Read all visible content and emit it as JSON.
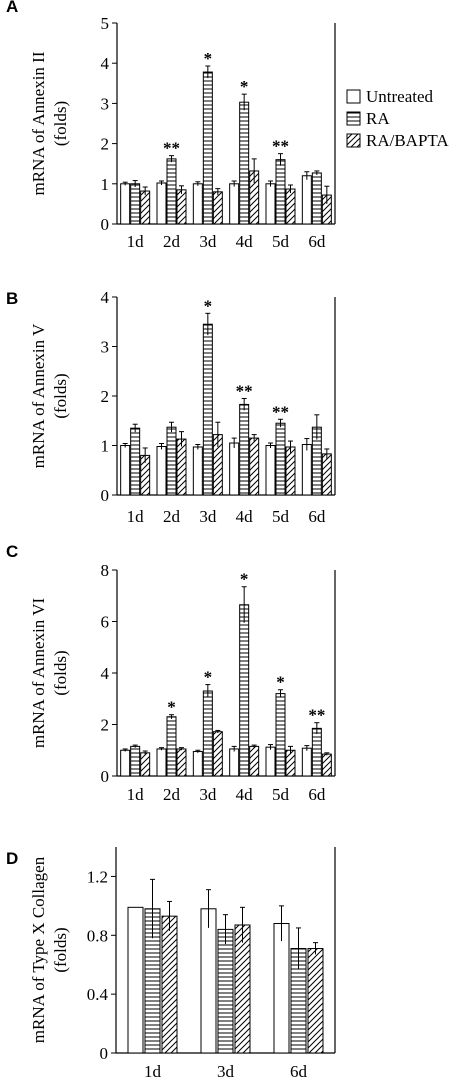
{
  "legend": {
    "entries": [
      {
        "label": "Untreated",
        "pattern": "open"
      },
      {
        "label": "RA",
        "pattern": "horizontal-lines"
      },
      {
        "label": "RA/BAPTA",
        "pattern": "diagonal-lines"
      }
    ]
  },
  "chart_data": [
    {
      "panel": "A",
      "type": "bar",
      "ylabel": [
        "mRNA of Annexin II",
        "(folds)"
      ],
      "ylim": [
        0,
        5
      ],
      "yticks": [
        0,
        1,
        2,
        3,
        4,
        5
      ],
      "categories": [
        "1d",
        "2d",
        "3d",
        "4d",
        "5d",
        "6d"
      ],
      "series": [
        {
          "name": "Untreated",
          "values": [
            1.0,
            1.02,
            1.0,
            1.0,
            1.0,
            1.2
          ],
          "errors": [
            0.04,
            0.05,
            0.05,
            0.07,
            0.07,
            0.1
          ]
        },
        {
          "name": "RA",
          "values": [
            1.0,
            1.62,
            3.78,
            3.03,
            1.6,
            1.27
          ],
          "errors": [
            0.08,
            0.08,
            0.15,
            0.2,
            0.15,
            0.05
          ]
        },
        {
          "name": "RA/BAPTA",
          "values": [
            0.82,
            0.85,
            0.8,
            1.32,
            0.87,
            0.72
          ],
          "errors": [
            0.1,
            0.1,
            0.08,
            0.3,
            0.1,
            0.22
          ]
        }
      ],
      "significance": [
        "",
        "**",
        "*",
        "*",
        "**",
        ""
      ]
    },
    {
      "panel": "B",
      "type": "bar",
      "ylabel": [
        "mRNA of Annexin V",
        "(folds)"
      ],
      "ylim": [
        0,
        4
      ],
      "yticks": [
        0,
        1,
        2,
        3,
        4
      ],
      "categories": [
        "1d",
        "2d",
        "3d",
        "4d",
        "5d",
        "6d"
      ],
      "series": [
        {
          "name": "Untreated",
          "values": [
            1.0,
            0.98,
            0.97,
            1.05,
            1.0,
            1.02
          ],
          "errors": [
            0.04,
            0.06,
            0.05,
            0.1,
            0.05,
            0.12
          ]
        },
        {
          "name": "RA",
          "values": [
            1.35,
            1.37,
            3.45,
            1.83,
            1.45,
            1.37
          ],
          "errors": [
            0.08,
            0.1,
            0.22,
            0.12,
            0.08,
            0.25
          ]
        },
        {
          "name": "RA/BAPTA",
          "values": [
            0.8,
            1.13,
            1.22,
            1.15,
            0.97,
            0.83
          ],
          "errors": [
            0.15,
            0.15,
            0.25,
            0.07,
            0.12,
            0.1
          ]
        }
      ],
      "significance": [
        "",
        "",
        "*",
        "**",
        "**",
        ""
      ]
    },
    {
      "panel": "C",
      "type": "bar",
      "ylabel": [
        "mRNA of Annexin VI",
        "(folds)"
      ],
      "ylim": [
        0,
        8
      ],
      "yticks": [
        0,
        2,
        4,
        6,
        8
      ],
      "categories": [
        "1d",
        "2d",
        "3d",
        "4d",
        "5d",
        "6d"
      ],
      "series": [
        {
          "name": "Untreated",
          "values": [
            1.0,
            1.05,
            0.95,
            1.05,
            1.12,
            1.08
          ],
          "errors": [
            0.05,
            0.05,
            0.05,
            0.1,
            0.1,
            0.1
          ]
        },
        {
          "name": "RA",
          "values": [
            1.15,
            2.3,
            3.3,
            6.65,
            3.2,
            1.85
          ],
          "errors": [
            0.05,
            0.08,
            0.25,
            0.7,
            0.15,
            0.22
          ]
        },
        {
          "name": "RA/BAPTA",
          "values": [
            0.9,
            1.05,
            1.72,
            1.15,
            1.0,
            0.85
          ],
          "errors": [
            0.07,
            0.05,
            0.05,
            0.05,
            0.15,
            0.05
          ]
        }
      ],
      "significance": [
        "",
        "*",
        "*",
        "*",
        "*",
        "**"
      ]
    },
    {
      "panel": "D",
      "type": "bar",
      "ylabel": [
        "mRNA of Type X Collagen",
        "(folds)"
      ],
      "ylim": [
        0,
        1.4
      ],
      "yticks": [
        0,
        0.4,
        0.8,
        1.2
      ],
      "categories": [
        "1d",
        "3d",
        "6d"
      ],
      "series": [
        {
          "name": "Untreated",
          "values": [
            0.99,
            0.98,
            0.88
          ],
          "errors": [
            0.0,
            0.13,
            0.12
          ]
        },
        {
          "name": "RA",
          "values": [
            0.98,
            0.84,
            0.71
          ],
          "errors": [
            0.2,
            0.1,
            0.14
          ]
        },
        {
          "name": "RA/BAPTA",
          "values": [
            0.93,
            0.87,
            0.71
          ],
          "errors": [
            0.1,
            0.12,
            0.04
          ]
        }
      ],
      "significance": [
        "",
        "",
        ""
      ]
    }
  ]
}
